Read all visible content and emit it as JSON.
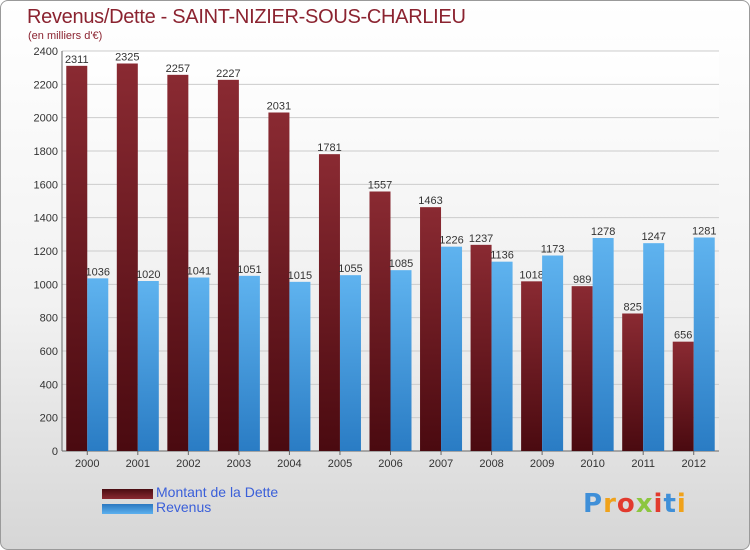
{
  "chart_data": {
    "type": "bar",
    "title": "Revenus/Dette - SAINT-NIZIER-SOUS-CHARLIEU",
    "subtitle": "(en milliers d'€)",
    "categories": [
      "2000",
      "2001",
      "2002",
      "2003",
      "2004",
      "2005",
      "2006",
      "2007",
      "2008",
      "2009",
      "2010",
      "2011",
      "2012"
    ],
    "series": [
      {
        "name": "Montant de la Dette",
        "color": "#7a1f26",
        "values": [
          2311,
          2325,
          2257,
          2227,
          2031,
          1781,
          1557,
          1463,
          1237,
          1018,
          989,
          825,
          656
        ]
      },
      {
        "name": "Revenus",
        "color": "#3d97dc",
        "values": [
          1036,
          1020,
          1041,
          1051,
          1015,
          1055,
          1085,
          1226,
          1136,
          1173,
          1278,
          1247,
          1281
        ]
      }
    ],
    "ylim": [
      0,
      2400
    ],
    "yticks": [
      0,
      200,
      400,
      600,
      800,
      1000,
      1200,
      1400,
      1600,
      1800,
      2000,
      2200,
      2400
    ],
    "grid": true,
    "legend": "bottom-left"
  },
  "logo": {
    "letters": [
      "P",
      "r",
      "o",
      "x",
      "i",
      "t",
      "i"
    ]
  }
}
